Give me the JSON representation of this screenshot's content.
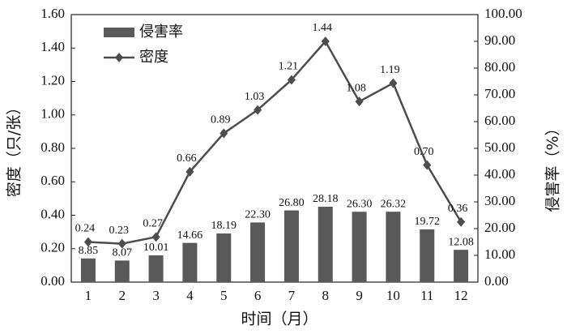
{
  "chart_data": {
    "type": "combo",
    "x_label": "时间（月）",
    "y_label": "密度（只/张）",
    "y2_label": "侵害率（%）",
    "categories": [
      "1",
      "2",
      "3",
      "4",
      "5",
      "6",
      "7",
      "8",
      "9",
      "10",
      "11",
      "12"
    ],
    "series": [
      {
        "name": "侵害率",
        "type": "bar",
        "axis": "y2",
        "color": "#595959",
        "values": [
          8.85,
          8.07,
          10.01,
          14.66,
          18.19,
          22.3,
          26.8,
          28.18,
          26.3,
          26.32,
          19.72,
          12.08
        ],
        "value_labels": [
          "8.85",
          "8.07",
          "10.01",
          "14.66",
          "18.19",
          "22.30",
          "26.80",
          "28.18",
          "26.30",
          "26.32",
          "19.72",
          "12.08"
        ]
      },
      {
        "name": "密度",
        "type": "line",
        "color": "#4d4d4d",
        "values": [
          0.24,
          0.23,
          0.27,
          0.66,
          0.89,
          1.03,
          1.21,
          1.44,
          1.08,
          1.19,
          0.7,
          0.36
        ],
        "value_labels": [
          "0.24",
          "0.23",
          "0.27",
          "0.66",
          "0.89",
          "1.03",
          "1.21",
          "1.44",
          "1.08",
          "1.19",
          "0.70",
          "0.36"
        ]
      }
    ],
    "ylim": [
      0,
      1.6
    ],
    "yticks": [
      {
        "value": 0,
        "label": "0.00"
      },
      {
        "value": 0.2,
        "label": "0.20"
      },
      {
        "value": 0.4,
        "label": "0.40"
      },
      {
        "value": 0.6,
        "label": "0.60"
      },
      {
        "value": 0.8,
        "label": "0.80"
      },
      {
        "value": 1,
        "label": "1.00"
      },
      {
        "value": 1.2,
        "label": "1.20"
      },
      {
        "value": 1.4,
        "label": "1.40"
      },
      {
        "value": 1.6,
        "label": "1.60"
      }
    ],
    "y2lim": [
      0,
      100
    ],
    "y2ticks": [
      {
        "value": 0,
        "label": "0.00"
      },
      {
        "value": 10,
        "label": "10.00"
      },
      {
        "value": 20,
        "label": "20.00"
      },
      {
        "value": 30,
        "label": "30.00"
      },
      {
        "value": 40,
        "label": "40.00"
      },
      {
        "value": 50,
        "label": "50.00"
      },
      {
        "value": 60,
        "label": "60.00"
      },
      {
        "value": 70,
        "label": "70.00"
      },
      {
        "value": 80,
        "label": "80.00"
      },
      {
        "value": 90,
        "label": "90.00"
      },
      {
        "value": 100,
        "label": "100.00"
      }
    ],
    "legend": "upper left"
  }
}
